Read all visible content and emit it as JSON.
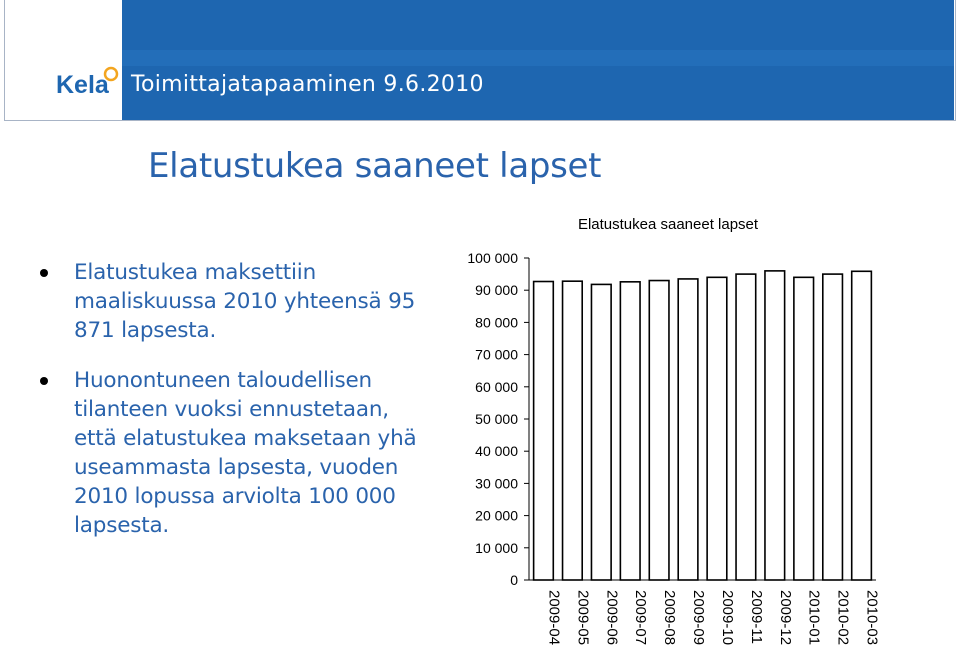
{
  "header": {
    "brand": "Kela",
    "subtitle": "Toimittajatapaaminen 9.6.2010",
    "brand_color": "#1e66b0",
    "logo_orange": "#f3a51f"
  },
  "slide": {
    "title": "Elatustukea saaneet lapset",
    "title_color": "#2a63ac",
    "bullets": [
      "Elatustukea maksettiin maaliskuussa 2010 yhteensä 95 871 lapsesta.",
      "Huonontuneen taloudellisen tilanteen vuoksi ennustetaan, että elatustukea maksetaan yhä useammasta lapsesta, vuoden 2010 lopussa arviolta 100 000 lapsesta."
    ]
  },
  "chart_data": {
    "type": "bar",
    "title": "Elatustukea saaneet lapset",
    "categories": [
      "2009-04",
      "2009-05",
      "2009-06",
      "2009-07",
      "2009-08",
      "2009-09",
      "2009-10",
      "2009-11",
      "2009-12",
      "2010-01",
      "2010-02",
      "2010-03"
    ],
    "values": [
      92700,
      92800,
      91800,
      92600,
      93000,
      93500,
      94000,
      95000,
      96000,
      94000,
      95000,
      95871
    ],
    "ylim": [
      0,
      100000
    ],
    "yticks": [
      0,
      10000,
      20000,
      30000,
      40000,
      50000,
      60000,
      70000,
      80000,
      90000,
      100000
    ],
    "ytick_labels": [
      "0",
      "10 000",
      "20 000",
      "30 000",
      "40 000",
      "50 000",
      "60 000",
      "70 000",
      "80 000",
      "90 000",
      "100 000"
    ],
    "grid": false,
    "bar_color": "#ffffff",
    "bar_edge": "#000000"
  }
}
